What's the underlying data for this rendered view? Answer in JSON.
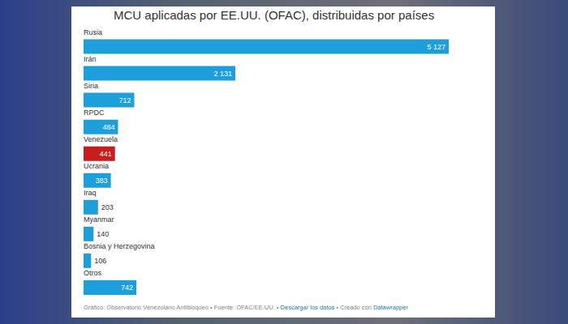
{
  "chart_data": {
    "type": "bar",
    "orientation": "horizontal",
    "title": "MCU aplicadas por EE.UU. (OFAC), distribuidas por países",
    "categories": [
      "Rusia",
      "Irán",
      "Siria",
      "RPDC",
      "Venezuela",
      "Ucrania",
      "Iraq",
      "Myanmar",
      "Bosnia y Herzegovina",
      "Otros"
    ],
    "values": [
      5127,
      2131,
      712,
      484,
      441,
      383,
      203,
      140,
      106,
      742
    ],
    "value_labels": [
      "5 127",
      "2 131",
      "712",
      "484",
      "441",
      "383",
      "203",
      "140",
      "106",
      "742"
    ],
    "colors": [
      "#1d9fdc",
      "#1d9fdc",
      "#1d9fdc",
      "#1d9fdc",
      "#c71e1d",
      "#1d9fdc",
      "#1d9fdc",
      "#1d9fdc",
      "#1d9fdc",
      "#1d9fdc"
    ],
    "xlim": [
      0,
      5127
    ],
    "data_labels": true,
    "tick_labels": "y",
    "grid": false,
    "footer": [
      "Gráfico: Observatorio Venezolano Antibloqueo",
      "•",
      "Fuente: OFAC/EE.UU.",
      "•",
      "Descargar los datos",
      "•",
      "Creado con",
      "Datawrapper"
    ]
  }
}
